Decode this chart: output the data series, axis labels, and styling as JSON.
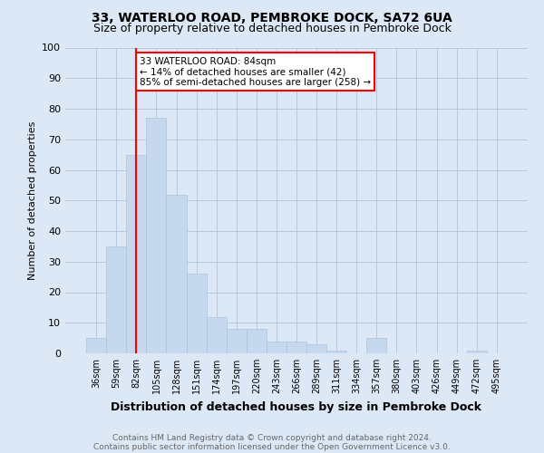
{
  "title": "33, WATERLOO ROAD, PEMBROKE DOCK, SA72 6UA",
  "subtitle": "Size of property relative to detached houses in Pembroke Dock",
  "xlabel": "Distribution of detached houses by size in Pembroke Dock",
  "ylabel": "Number of detached properties",
  "footnote1": "Contains HM Land Registry data © Crown copyright and database right 2024.",
  "footnote2": "Contains public sector information licensed under the Open Government Licence v3.0.",
  "categories": [
    "36sqm",
    "59sqm",
    "82sqm",
    "105sqm",
    "128sqm",
    "151sqm",
    "174sqm",
    "197sqm",
    "220sqm",
    "243sqm",
    "266sqm",
    "289sqm",
    "311sqm",
    "334sqm",
    "357sqm",
    "380sqm",
    "403sqm",
    "426sqm",
    "449sqm",
    "472sqm",
    "495sqm"
  ],
  "values": [
    5,
    35,
    65,
    77,
    52,
    26,
    12,
    8,
    8,
    4,
    4,
    3,
    1,
    0,
    5,
    0,
    0,
    0,
    0,
    1,
    0
  ],
  "bar_color": "#c5d8ed",
  "bar_edge_color": "#aac4de",
  "property_line_label": "33 WATERLOO ROAD: 84sqm",
  "annotation_line1": "← 14% of detached houses are smaller (42)",
  "annotation_line2": "85% of semi-detached houses are larger (258) →",
  "annotation_box_color": "white",
  "annotation_box_edge": "red",
  "vline_color": "red",
  "vline_x_index": 2,
  "ylim": [
    0,
    100
  ],
  "bg_color": "#dce8f5",
  "plot_bg_color": "#dce8f5",
  "grid_color": "#b0c4d8",
  "title_fontsize": 10,
  "subtitle_fontsize": 9,
  "ylabel_fontsize": 8,
  "xlabel_fontsize": 9,
  "tick_fontsize": 7,
  "ytick_fontsize": 8,
  "footnote_fontsize": 6.5,
  "footnote_color": "#666666"
}
